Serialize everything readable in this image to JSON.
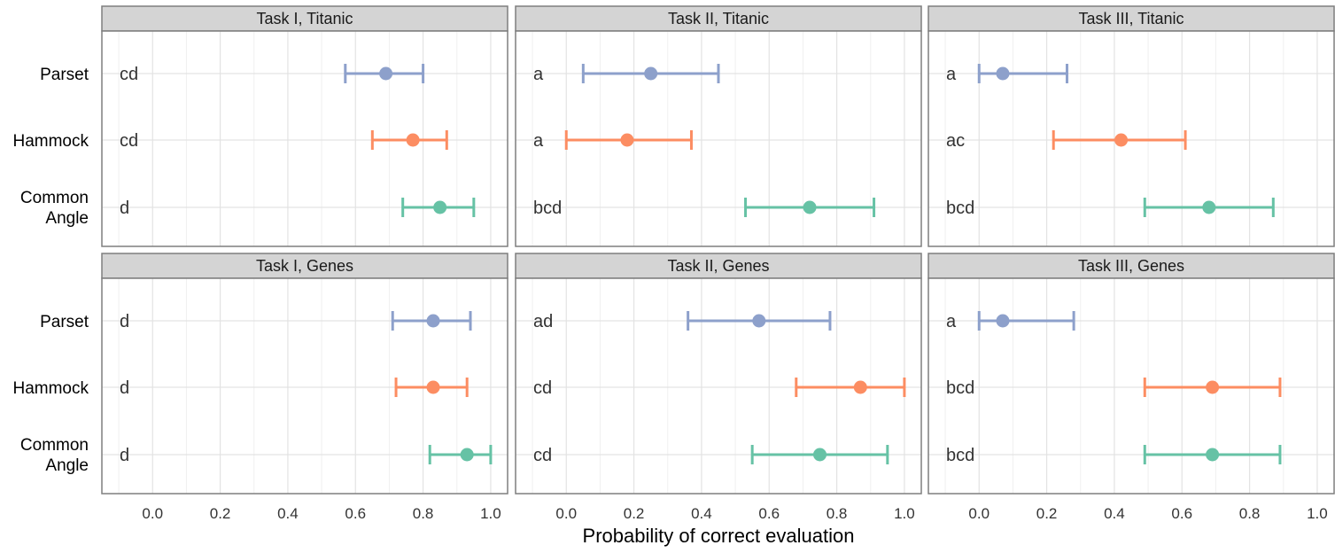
{
  "chart_data": {
    "type": "errorbar",
    "xlabel": "Probability of correct evaluation",
    "xlim": [
      -0.15,
      1.05
    ],
    "xticks": [
      "0.0",
      "0.2",
      "0.4",
      "0.6",
      "0.8",
      "1.0"
    ],
    "xtick_values": [
      0.0,
      0.2,
      0.4,
      0.6,
      0.8,
      1.0
    ],
    "grid": true,
    "categories": [
      {
        "key": "parset",
        "lines": [
          "Parset"
        ]
      },
      {
        "key": "hammock",
        "lines": [
          "Hammock"
        ]
      },
      {
        "key": "common_angle",
        "lines": [
          "Common",
          "Angle"
        ]
      }
    ],
    "colors": {
      "parset": "#8da0cb",
      "hammock": "#fc8d62",
      "common_angle": "#66c2a5"
    },
    "panels": [
      {
        "title": "Task I, Titanic",
        "rows": [
          {
            "category": "parset",
            "letters": "cd",
            "low": 0.57,
            "estimate": 0.69,
            "high": 0.8
          },
          {
            "category": "hammock",
            "letters": "cd",
            "low": 0.65,
            "estimate": 0.77,
            "high": 0.87
          },
          {
            "category": "common_angle",
            "letters": "d",
            "low": 0.74,
            "estimate": 0.85,
            "high": 0.95
          }
        ]
      },
      {
        "title": "Task II, Titanic",
        "rows": [
          {
            "category": "parset",
            "letters": "a",
            "low": 0.05,
            "estimate": 0.25,
            "high": 0.45
          },
          {
            "category": "hammock",
            "letters": "a",
            "low": 0.0,
            "estimate": 0.18,
            "high": 0.37
          },
          {
            "category": "common_angle",
            "letters": "bcd",
            "low": 0.53,
            "estimate": 0.72,
            "high": 0.91
          }
        ]
      },
      {
        "title": "Task III, Titanic",
        "rows": [
          {
            "category": "parset",
            "letters": "a",
            "low": 0.0,
            "estimate": 0.07,
            "high": 0.26
          },
          {
            "category": "hammock",
            "letters": "ac",
            "low": 0.22,
            "estimate": 0.42,
            "high": 0.61
          },
          {
            "category": "common_angle",
            "letters": "bcd",
            "low": 0.49,
            "estimate": 0.68,
            "high": 0.87
          }
        ]
      },
      {
        "title": "Task I, Genes",
        "rows": [
          {
            "category": "parset",
            "letters": "d",
            "low": 0.71,
            "estimate": 0.83,
            "high": 0.94
          },
          {
            "category": "hammock",
            "letters": "d",
            "low": 0.72,
            "estimate": 0.83,
            "high": 0.93
          },
          {
            "category": "common_angle",
            "letters": "d",
            "low": 0.82,
            "estimate": 0.93,
            "high": 1.0
          }
        ]
      },
      {
        "title": "Task II, Genes",
        "rows": [
          {
            "category": "parset",
            "letters": "ad",
            "low": 0.36,
            "estimate": 0.57,
            "high": 0.78
          },
          {
            "category": "hammock",
            "letters": "cd",
            "low": 0.68,
            "estimate": 0.87,
            "high": 1.0
          },
          {
            "category": "common_angle",
            "letters": "cd",
            "low": 0.55,
            "estimate": 0.75,
            "high": 0.95
          }
        ]
      },
      {
        "title": "Task III, Genes",
        "rows": [
          {
            "category": "parset",
            "letters": "a",
            "low": 0.0,
            "estimate": 0.07,
            "high": 0.28
          },
          {
            "category": "hammock",
            "letters": "bcd",
            "low": 0.49,
            "estimate": 0.69,
            "high": 0.89
          },
          {
            "category": "common_angle",
            "letters": "bcd",
            "low": 0.49,
            "estimate": 0.69,
            "high": 0.89
          }
        ]
      }
    ]
  }
}
